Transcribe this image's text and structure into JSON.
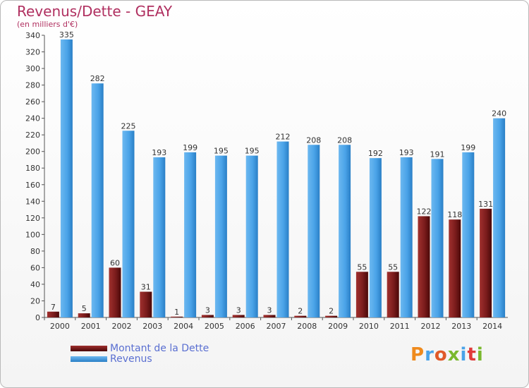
{
  "title": "Revenus/Dette - GEAY",
  "subtitle": "(en milliers d'€)",
  "logo": "Proxiti",
  "colors": {
    "title": "#b03060",
    "dette": "#7a1c1c",
    "revenus": "#4aa3e8",
    "legend_text": "#5a6fd1"
  },
  "chart_data": {
    "type": "bar",
    "categories": [
      "2000",
      "2001",
      "2002",
      "2003",
      "2004",
      "2005",
      "2006",
      "2007",
      "2008",
      "2009",
      "2010",
      "2011",
      "2012",
      "2013",
      "2014"
    ],
    "series": [
      {
        "name": "Montant de la Dette",
        "values": [
          7,
          5,
          60,
          31,
          1,
          3,
          3,
          3,
          2,
          2,
          55,
          55,
          122,
          118,
          131
        ]
      },
      {
        "name": "Revenus",
        "values": [
          335,
          282,
          225,
          193,
          199,
          195,
          195,
          212,
          208,
          208,
          192,
          193,
          191,
          199,
          240
        ]
      }
    ],
    "ylim": [
      0,
      340
    ],
    "yticks": [
      0,
      20,
      40,
      60,
      80,
      100,
      120,
      140,
      160,
      180,
      200,
      220,
      240,
      260,
      280,
      300,
      320,
      340
    ],
    "grid": false,
    "legend": "bottom-left"
  }
}
